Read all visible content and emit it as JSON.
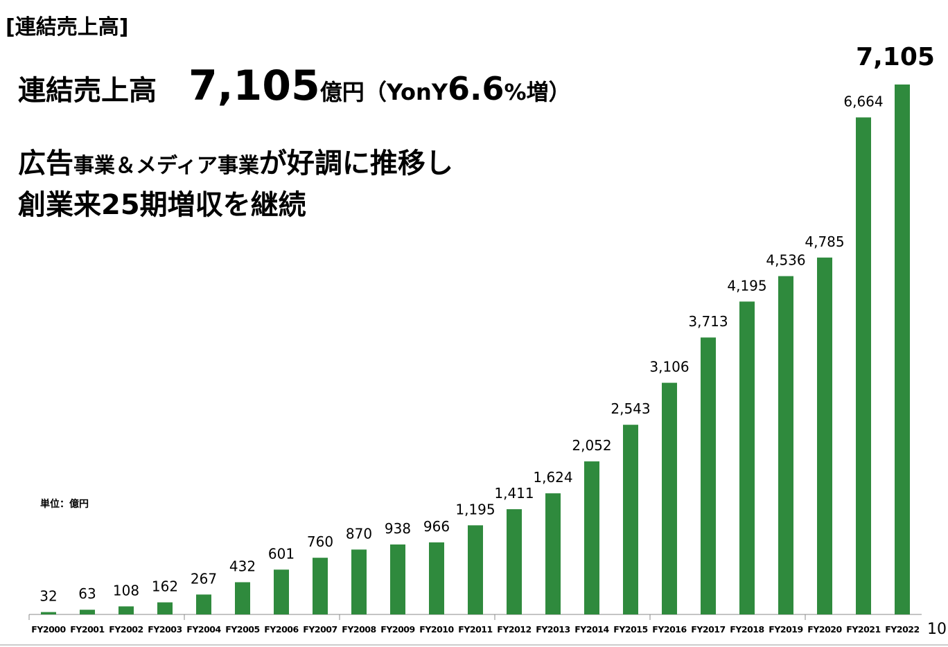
{
  "header": {
    "title": "[連結売上高]"
  },
  "headline": {
    "label": "連結売上高",
    "amount": "7,105",
    "unit": "億円",
    "yoy_prefix": "（YonY",
    "yoy_value": "6.6",
    "yoy_suffix": "%増）"
  },
  "message": {
    "line1_a": "広告",
    "line1_b": "事業＆メディア",
    "line1_c": "事業",
    "line1_d": "が好調に推移し",
    "line2": "創業来25期増収を継続"
  },
  "unit_note": "単位：億円",
  "page_number": "10",
  "chart_data": {
    "type": "bar",
    "color": "#2f8a3d",
    "categories": [
      "FY2000",
      "FY2001",
      "FY2002",
      "FY2003",
      "FY2004",
      "FY2005",
      "FY2006",
      "FY2007",
      "FY2008",
      "FY2009",
      "FY2010",
      "FY2011",
      "FY2012",
      "FY2013",
      "FY2014",
      "FY2015",
      "FY2016",
      "FY2017",
      "FY2018",
      "FY2019",
      "FY2020",
      "FY2021",
      "FY2022"
    ],
    "values": [
      32,
      63,
      108,
      162,
      267,
      432,
      601,
      760,
      870,
      938,
      966,
      1195,
      1411,
      1624,
      2052,
      2543,
      3106,
      3713,
      4195,
      4536,
      4785,
      6664,
      7105
    ],
    "value_labels": [
      "32",
      "63",
      "108",
      "162",
      "267",
      "432",
      "601",
      "760",
      "870",
      "938",
      "966",
      "1,195",
      "1,411",
      "1,624",
      "2,052",
      "2,543",
      "3,106",
      "3,713",
      "4,195",
      "4,536",
      "4,785",
      "6,664",
      "7,105"
    ]
  }
}
